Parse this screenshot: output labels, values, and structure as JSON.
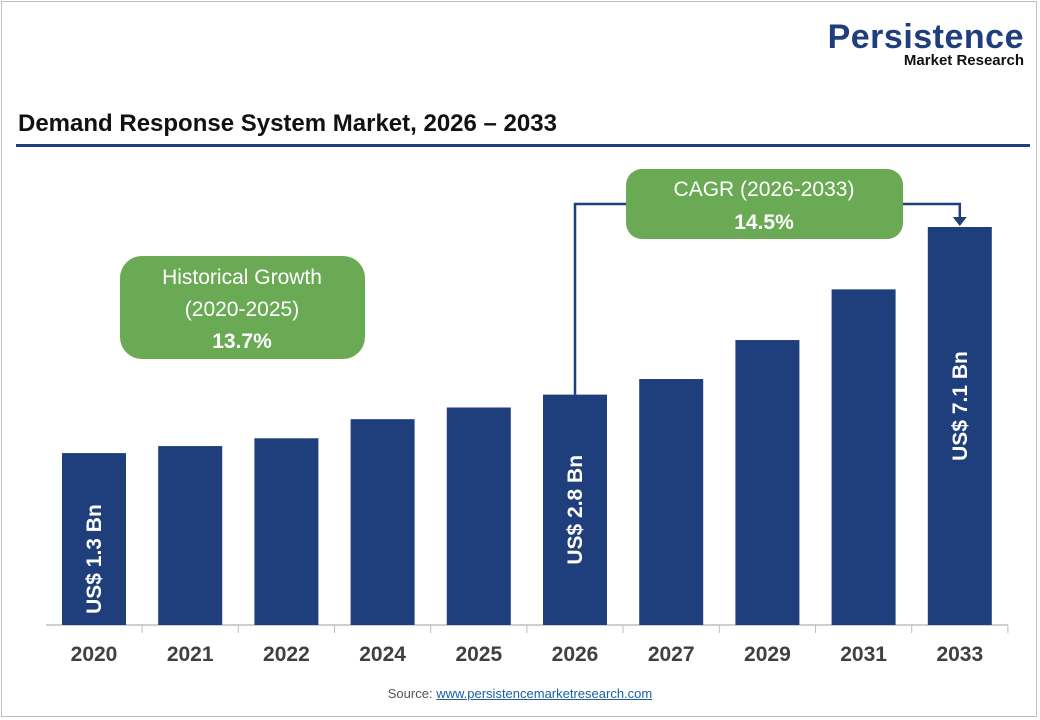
{
  "brand": {
    "line1": "Persistence",
    "line2": "Market Research"
  },
  "source": {
    "label": "Source:",
    "link": "www.persistencemarketresearch.com"
  },
  "chart_data": {
    "type": "bar",
    "title": "Demand Response System Market, 2026 – 2033",
    "categories": [
      "2020",
      "2021",
      "2022",
      "2024",
      "2025",
      "2026",
      "2027",
      "2029",
      "2031",
      "2033"
    ],
    "values": [
      1.3,
      1.48,
      1.68,
      2.17,
      2.47,
      2.8,
      3.2,
      4.2,
      5.5,
      7.1
    ],
    "data_labels": {
      "2020": "US$ 1.3 Bn",
      "2026": "US$ 2.8 Bn",
      "2033": "US$ 7.1 Bn"
    },
    "annotations": [
      {
        "line1": "Historical Growth",
        "line2": "(2020-2025)",
        "value": "13.7%"
      },
      {
        "line1": "CAGR (2026-2033)",
        "value": "14.5%"
      }
    ],
    "colors": {
      "bar": "#1f3e7c",
      "callout": "#6aaa55",
      "axis": "#bfbfbf"
    },
    "grid": false,
    "legend": "none"
  }
}
